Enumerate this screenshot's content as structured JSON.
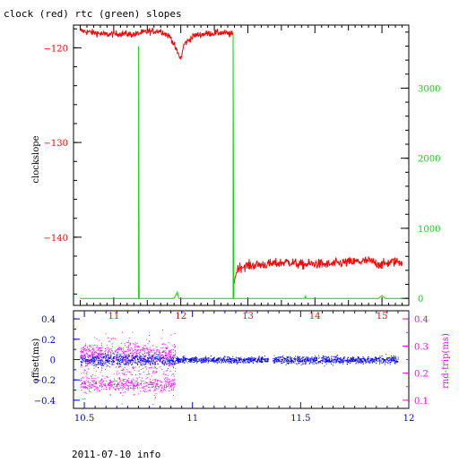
{
  "header": {
    "title": "clock (red) rtc (green) slopes"
  },
  "footer": {
    "text": "2011-07-10 info"
  },
  "colors": {
    "clock": "#ff0000",
    "rtc": "#00dd00",
    "offset": "#0000ff",
    "rndtrip": "#ff00ff",
    "axis": "#000000"
  },
  "chart_data": [
    {
      "type": "line",
      "title": "clock (red) rtc (green) slopes",
      "ylabel": "clockslope",
      "y2label": "",
      "xlim": [
        10.4,
        15.4
      ],
      "ylim": [
        -147.2,
        -117.6
      ],
      "y2lim": [
        -100,
        3900
      ],
      "xticks": [
        11,
        12,
        13,
        14,
        15
      ],
      "yticks": [
        -120,
        -130,
        -140
      ],
      "y2ticks": [
        0,
        1000,
        2000,
        3000
      ],
      "series": [
        {
          "name": "clock",
          "axis": "left",
          "color": "#ff0000",
          "points": [
            [
              10.5,
              -118.2
            ],
            [
              10.7,
              -118.4
            ],
            [
              10.9,
              -118.6
            ],
            [
              11.1,
              -118.5
            ],
            [
              11.3,
              -118.6
            ],
            [
              11.5,
              -118.3
            ],
            [
              11.7,
              -118.2
            ],
            [
              11.85,
              -118.9
            ],
            [
              11.95,
              -120.5
            ],
            [
              12.0,
              -121.2
            ],
            [
              12.05,
              -119.6
            ],
            [
              12.2,
              -118.7
            ],
            [
              12.4,
              -118.5
            ],
            [
              12.6,
              -118.4
            ],
            [
              12.78,
              -118.6
            ],
            [
              12.78,
              -145.0
            ],
            [
              12.85,
              -143.2
            ],
            [
              13.0,
              -143.0
            ],
            [
              13.2,
              -142.9
            ],
            [
              13.4,
              -142.8
            ],
            [
              13.6,
              -142.6
            ],
            [
              13.8,
              -142.9
            ],
            [
              14.0,
              -142.8
            ],
            [
              14.2,
              -142.9
            ],
            [
              14.4,
              -142.7
            ],
            [
              14.6,
              -142.6
            ],
            [
              14.8,
              -142.5
            ],
            [
              15.0,
              -142.9
            ],
            [
              15.15,
              -142.6
            ],
            [
              15.3,
              -142.6
            ]
          ]
        },
        {
          "name": "rtc",
          "axis": "right",
          "color": "#00dd00",
          "points": [
            [
              10.5,
              0
            ],
            [
              11.37,
              0
            ],
            [
              11.37,
              3600
            ],
            [
              11.38,
              0
            ],
            [
              11.9,
              0
            ],
            [
              11.95,
              90
            ],
            [
              11.97,
              0
            ],
            [
              12.78,
              0
            ],
            [
              12.78,
              3800
            ],
            [
              12.79,
              0
            ],
            [
              13.0,
              0
            ],
            [
              13.85,
              0
            ],
            [
              13.86,
              30
            ],
            [
              13.87,
              0
            ],
            [
              14.95,
              0
            ],
            [
              15.0,
              40
            ],
            [
              15.05,
              0
            ],
            [
              15.3,
              0
            ]
          ]
        }
      ]
    },
    {
      "type": "scatter",
      "ylabel": "offset(ms)",
      "y2label": "rnd-trip(ms)",
      "xlim": [
        10.45,
        12.0
      ],
      "ylim": [
        -0.48,
        0.48
      ],
      "y2lim": [
        0.07,
        0.43
      ],
      "xticks": [
        10.5,
        11,
        11.5,
        12
      ],
      "yticks": [
        0.4,
        0.2,
        0,
        -0.2,
        -0.4
      ],
      "y2ticks": [
        0.4,
        0.3,
        0.2,
        0.1
      ],
      "series": [
        {
          "name": "offset",
          "axis": "left",
          "color": "#0000ff",
          "segments": [
            {
              "x": [
                10.48,
                10.92
              ],
              "center": 0.0,
              "spread": 0.06
            },
            {
              "x": [
                10.92,
                11.35
              ],
              "center": 0.0,
              "spread": 0.03
            },
            {
              "x": [
                11.37,
                11.95
              ],
              "center": 0.0,
              "spread": 0.04
            }
          ]
        },
        {
          "name": "rnd-trip",
          "axis": "right",
          "color": "#ff00ff",
          "segments": [
            {
              "x": [
                10.48,
                10.92
              ],
              "center": 0.28,
              "spread": 0.03
            },
            {
              "x": [
                10.48,
                10.92
              ],
              "center": 0.16,
              "spread": 0.025
            },
            {
              "x": [
                10.48,
                10.92
              ],
              "center": 0.22,
              "spread": 0.12
            }
          ]
        }
      ]
    }
  ]
}
